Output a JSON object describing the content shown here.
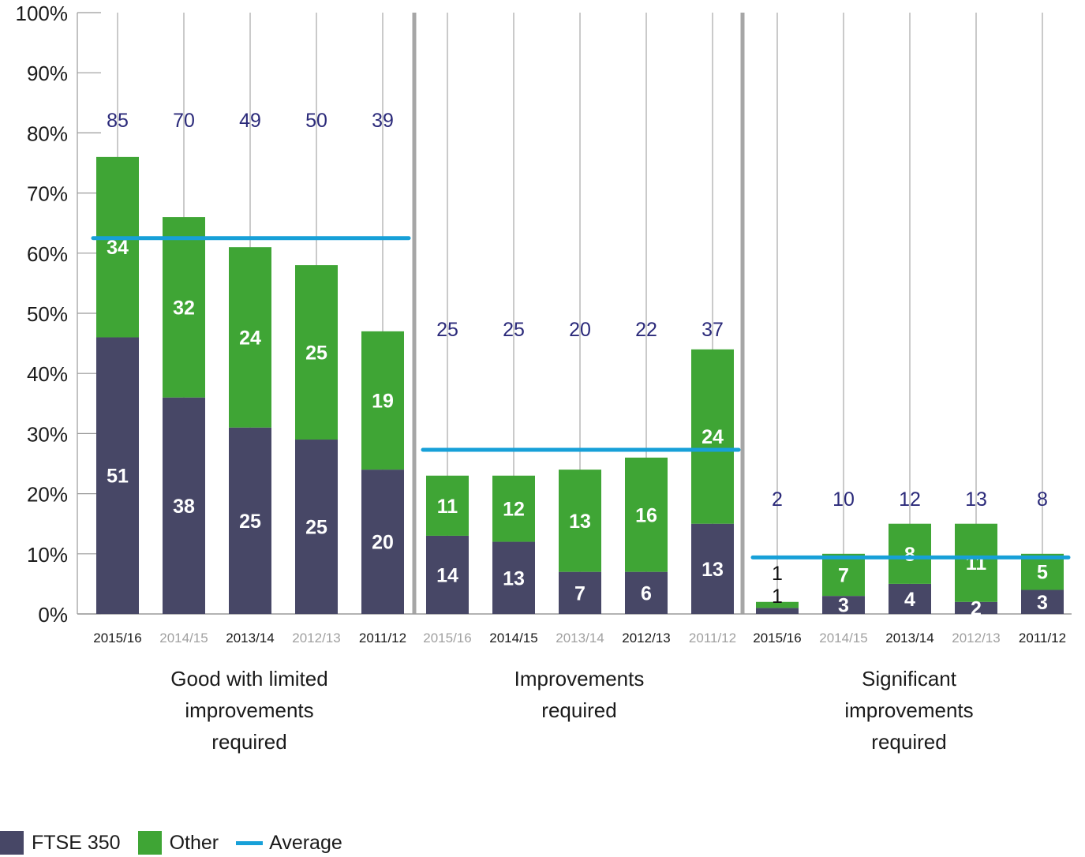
{
  "chart_data": {
    "type": "bar",
    "stacked": true,
    "y_axis": {
      "ticks": [
        "0%",
        "10%",
        "20%",
        "30%",
        "40%",
        "50%",
        "60%",
        "70%",
        "80%",
        "90%",
        "100%"
      ],
      "ylim": [
        0,
        100
      ]
    },
    "legend": {
      "placement": "bottom-left",
      "items": [
        {
          "name": "FTSE 350",
          "color": "#474766",
          "kind": "bar"
        },
        {
          "name": "Other",
          "color": "#3fa535",
          "kind": "bar"
        },
        {
          "name": "Average",
          "color": "#17a0d8",
          "kind": "line"
        }
      ]
    },
    "colors": {
      "ftse": "#474766",
      "other": "#3fa535",
      "average": "#17a0d8",
      "total_label": "#2b2a7a",
      "separator": "#a6a6a6",
      "gridline": "#a6a6a6"
    },
    "groups": [
      {
        "label": "Good with limited improvements required",
        "label_lines": [
          "Good with limited",
          "improvements",
          "required"
        ],
        "average": 62.5,
        "bars": [
          {
            "year": "2015/16",
            "ftse_pct": 46,
            "other_pct": 30,
            "ftse_count": "51",
            "other_count": "34",
            "total": "85",
            "year_muted": false
          },
          {
            "year": "2014/15",
            "ftse_pct": 36,
            "other_pct": 30,
            "ftse_count": "38",
            "other_count": "32",
            "total": "70",
            "year_muted": true
          },
          {
            "year": "2013/14",
            "ftse_pct": 31,
            "other_pct": 30,
            "ftse_count": "25",
            "other_count": "24",
            "total": "49",
            "year_muted": false
          },
          {
            "year": "2012/13",
            "ftse_pct": 29,
            "other_pct": 29,
            "ftse_count": "25",
            "other_count": "25",
            "total": "50",
            "year_muted": true
          },
          {
            "year": "2011/12",
            "ftse_pct": 24,
            "other_pct": 23,
            "ftse_count": "20",
            "other_count": "19",
            "total": "39",
            "year_muted": false
          }
        ]
      },
      {
        "label": "Improvements required",
        "label_lines": [
          "Improvements",
          "required"
        ],
        "average": 27.3,
        "bars": [
          {
            "year": "2015/16",
            "ftse_pct": 13,
            "other_pct": 10,
            "ftse_count": "14",
            "other_count": "11",
            "total": "25",
            "year_muted": true
          },
          {
            "year": "2014/15",
            "ftse_pct": 12,
            "other_pct": 11,
            "ftse_count": "13",
            "other_count": "12",
            "total": "25",
            "year_muted": false
          },
          {
            "year": "2013/14",
            "ftse_pct": 7,
            "other_pct": 17,
            "ftse_count": "7",
            "other_count": "13",
            "total": "20",
            "year_muted": true
          },
          {
            "year": "2012/13",
            "ftse_pct": 7,
            "other_pct": 19,
            "ftse_count": "6",
            "other_count": "16",
            "total": "22",
            "year_muted": false
          },
          {
            "year": "2011/12",
            "ftse_pct": 15,
            "other_pct": 29,
            "ftse_count": "13",
            "other_count": "24",
            "total": "37",
            "year_muted": true
          }
        ]
      },
      {
        "label": "Significant improvements required",
        "label_lines": [
          "Significant",
          "improvements",
          "required"
        ],
        "average": 9.4,
        "bars": [
          {
            "year": "2015/16",
            "ftse_pct": 1,
            "other_pct": 1,
            "ftse_count": "1",
            "other_count": "1",
            "total": "2",
            "year_muted": false,
            "labels_outside": true
          },
          {
            "year": "2014/15",
            "ftse_pct": 3,
            "other_pct": 7,
            "ftse_count": "3",
            "other_count": "7",
            "total": "10",
            "year_muted": true
          },
          {
            "year": "2013/14",
            "ftse_pct": 5,
            "other_pct": 10,
            "ftse_count": "4",
            "other_count": "8",
            "total": "12",
            "year_muted": false
          },
          {
            "year": "2012/13",
            "ftse_pct": 2,
            "other_pct": 13,
            "ftse_count": "2",
            "other_count": "11",
            "total": "13",
            "year_muted": true
          },
          {
            "year": "2011/12",
            "ftse_pct": 4,
            "other_pct": 6,
            "ftse_count": "3",
            "other_count": "5",
            "total": "8",
            "year_muted": false
          }
        ]
      }
    ]
  }
}
